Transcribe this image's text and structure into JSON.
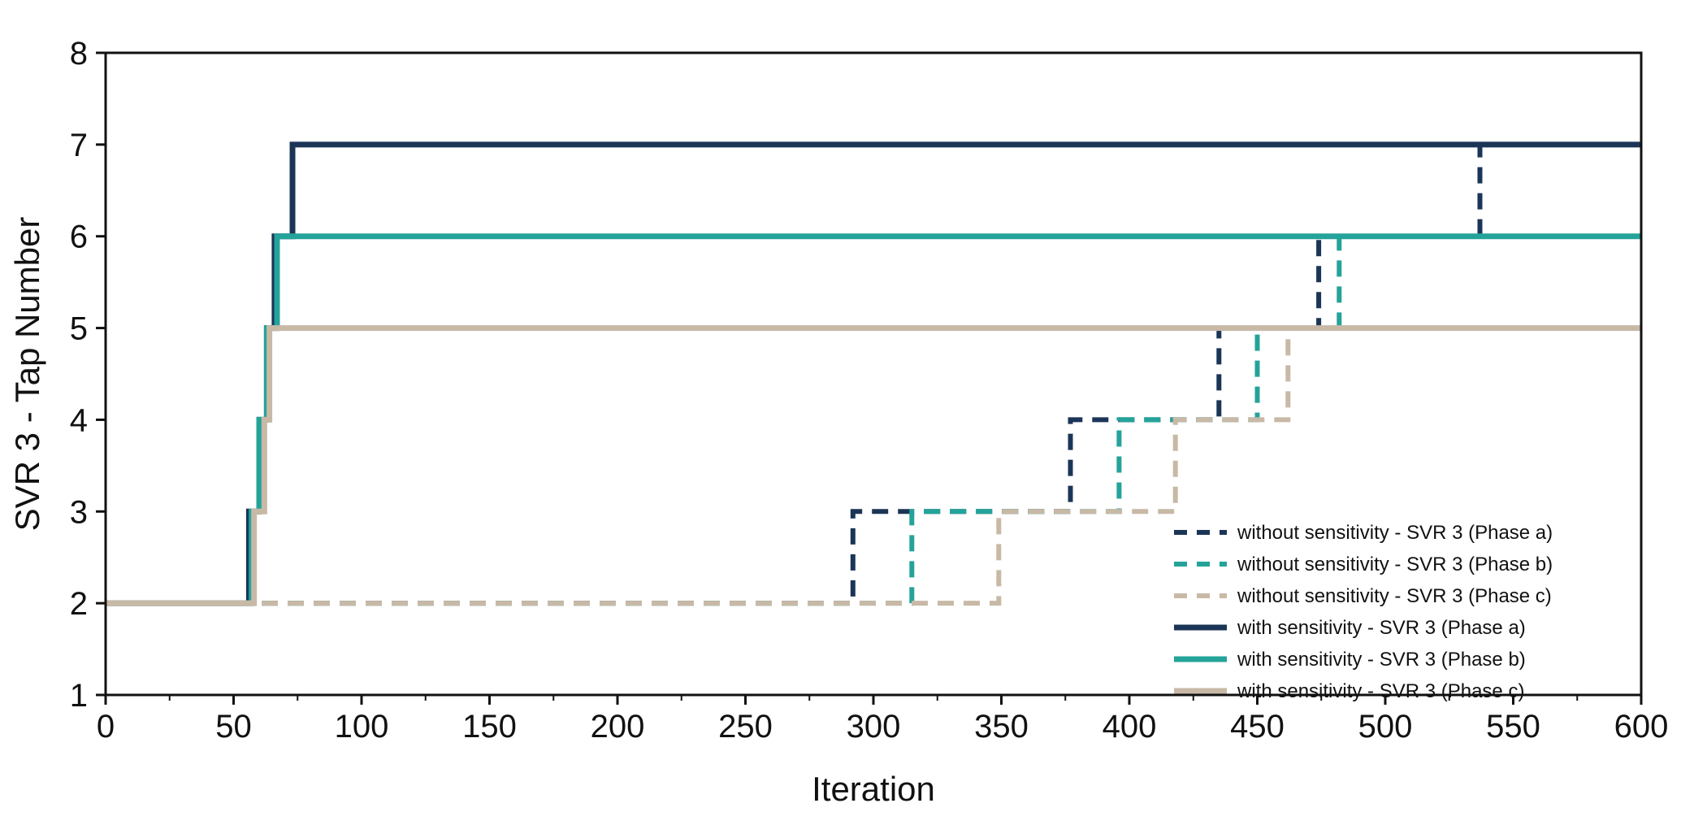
{
  "chart_data": {
    "type": "line",
    "title": "",
    "xlabel": "Iteration",
    "ylabel": "SVR 3 - Tap Number",
    "xlim": [
      0,
      600
    ],
    "ylim": [
      1,
      8
    ],
    "xticks": [
      0,
      50,
      100,
      150,
      200,
      250,
      300,
      350,
      400,
      450,
      500,
      550,
      600
    ],
    "yticks": [
      1,
      2,
      3,
      4,
      5,
      6,
      7,
      8
    ],
    "grid": false,
    "legend_position": "bottom-right",
    "series": [
      {
        "name": "without sensitivity - SVR 3 (Phase a)",
        "color": "#1b3557",
        "style": "dashed",
        "points": [
          [
            0,
            2
          ],
          [
            292,
            2
          ],
          [
            292,
            3
          ],
          [
            377,
            3
          ],
          [
            377,
            4
          ],
          [
            435,
            4
          ],
          [
            435,
            5
          ],
          [
            474,
            5
          ],
          [
            474,
            6
          ],
          [
            537,
            6
          ],
          [
            537,
            7
          ],
          [
            600,
            7
          ]
        ]
      },
      {
        "name": "without sensitivity - SVR 3 (Phase b)",
        "color": "#24a39a",
        "style": "dashed",
        "points": [
          [
            0,
            2
          ],
          [
            315,
            2
          ],
          [
            315,
            3
          ],
          [
            396,
            3
          ],
          [
            396,
            4
          ],
          [
            450,
            4
          ],
          [
            450,
            5
          ],
          [
            482,
            5
          ],
          [
            482,
            6
          ],
          [
            600,
            6
          ]
        ]
      },
      {
        "name": "without sensitivity - SVR 3 (Phase c)",
        "color": "#c8b9a6",
        "style": "dashed",
        "points": [
          [
            0,
            2
          ],
          [
            349,
            2
          ],
          [
            349,
            3
          ],
          [
            418,
            3
          ],
          [
            418,
            4
          ],
          [
            462,
            4
          ],
          [
            462,
            5
          ],
          [
            600,
            5
          ]
        ]
      },
      {
        "name": "with sensitivity - SVR 3 (Phase a)",
        "color": "#1b3557",
        "style": "solid",
        "points": [
          [
            0,
            2
          ],
          [
            56,
            2
          ],
          [
            56,
            3
          ],
          [
            60,
            3
          ],
          [
            60,
            4
          ],
          [
            63,
            4
          ],
          [
            63,
            5
          ],
          [
            66,
            5
          ],
          [
            66,
            6
          ],
          [
            73,
            6
          ],
          [
            73,
            7
          ],
          [
            600,
            7
          ]
        ]
      },
      {
        "name": "with sensitivity - SVR 3 (Phase b)",
        "color": "#24a39a",
        "style": "solid",
        "points": [
          [
            0,
            2
          ],
          [
            57,
            2
          ],
          [
            57,
            3
          ],
          [
            60,
            3
          ],
          [
            60,
            4
          ],
          [
            63,
            4
          ],
          [
            63,
            5
          ],
          [
            67,
            5
          ],
          [
            67,
            6
          ],
          [
            600,
            6
          ]
        ]
      },
      {
        "name": "with sensitivity - SVR 3 (Phase c)",
        "color": "#c8b9a6",
        "style": "solid",
        "points": [
          [
            0,
            2
          ],
          [
            58,
            2
          ],
          [
            58,
            3
          ],
          [
            62,
            3
          ],
          [
            62,
            4
          ],
          [
            64,
            4
          ],
          [
            64,
            5
          ],
          [
            600,
            5
          ]
        ]
      }
    ]
  }
}
